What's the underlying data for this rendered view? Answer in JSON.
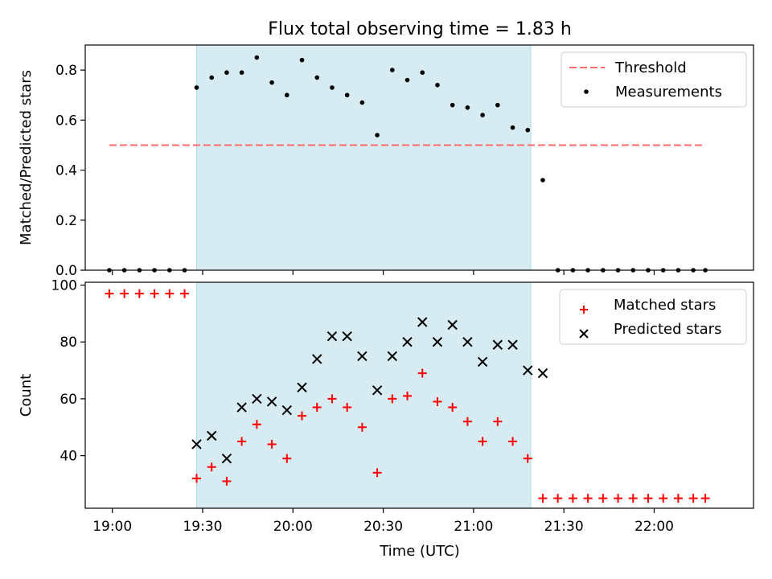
{
  "figure": {
    "title": "Flux total observing time = 1.83 h",
    "xlabel": "Time (UTC)",
    "background": "#ffffff"
  },
  "chart_data": [
    {
      "type": "scatter",
      "ylabel": "Matched/Predicted stars",
      "xlim": [
        "18:51",
        "22:33"
      ],
      "ylim": [
        0,
        0.9
      ],
      "yticks": [
        0.0,
        0.2,
        0.4,
        0.6,
        0.8
      ],
      "ytick_labels": [
        "0.0",
        "0.2",
        "0.4",
        "0.6",
        "0.8"
      ],
      "xticks": [
        "19:00",
        "19:30",
        "20:00",
        "20:30",
        "21:00",
        "21:30",
        "22:00"
      ],
      "xtick_labels_visible": false,
      "shaded_span": {
        "x": [
          "19:28",
          "21:19"
        ],
        "color": "#add8e6"
      },
      "legend": {
        "position": "top-right",
        "entries": [
          "Threshold",
          "Measurements"
        ]
      },
      "threshold": {
        "name": "Threshold",
        "y": 0.5,
        "x": [
          "18:59",
          "22:17"
        ],
        "color": "#ff6b6b",
        "style": "dashed"
      },
      "series": [
        {
          "name": "Measurements",
          "marker": "dot",
          "color": "#000000",
          "x": [
            "18:59",
            "19:04",
            "19:09",
            "19:14",
            "19:19",
            "19:24",
            "19:28",
            "19:33",
            "19:38",
            "19:43",
            "19:48",
            "19:53",
            "19:58",
            "20:03",
            "20:08",
            "20:13",
            "20:18",
            "20:23",
            "20:28",
            "20:33",
            "20:38",
            "20:43",
            "20:48",
            "20:53",
            "20:58",
            "21:03",
            "21:08",
            "21:13",
            "21:18",
            "21:23",
            "21:28",
            "21:33",
            "21:38",
            "21:43",
            "21:48",
            "21:53",
            "21:58",
            "22:03",
            "22:08",
            "22:13",
            "22:17"
          ],
          "y": [
            0,
            0,
            0,
            0,
            0,
            0,
            0.73,
            0.77,
            0.79,
            0.79,
            0.85,
            0.75,
            0.7,
            0.84,
            0.77,
            0.73,
            0.7,
            0.67,
            0.54,
            0.8,
            0.76,
            0.79,
            0.74,
            0.66,
            0.65,
            0.62,
            0.66,
            0.57,
            0.56,
            0.36,
            0,
            0,
            0,
            0,
            0,
            0,
            0,
            0,
            0,
            0,
            0
          ]
        }
      ]
    },
    {
      "type": "scatter",
      "ylabel": "Count",
      "xlim": [
        "18:51",
        "22:33"
      ],
      "ylim": [
        21.5,
        101
      ],
      "yticks": [
        40,
        60,
        80,
        100
      ],
      "ytick_labels": [
        "40",
        "60",
        "80",
        "100"
      ],
      "xticks": [
        "19:00",
        "19:30",
        "20:00",
        "20:30",
        "21:00",
        "21:30",
        "22:00"
      ],
      "xtick_labels": [
        "19:00",
        "19:30",
        "20:00",
        "20:30",
        "21:00",
        "21:30",
        "22:00"
      ],
      "shaded_span": {
        "x": [
          "19:28",
          "21:19"
        ],
        "color": "#add8e6"
      },
      "legend": {
        "position": "top-right",
        "entries": [
          "Matched stars",
          "Predicted stars"
        ]
      },
      "series": [
        {
          "name": "Matched stars",
          "marker": "plus",
          "color": "#ff0000",
          "x": [
            "18:59",
            "19:04",
            "19:09",
            "19:14",
            "19:19",
            "19:24",
            "19:28",
            "19:33",
            "19:38",
            "19:43",
            "19:48",
            "19:53",
            "19:58",
            "20:03",
            "20:08",
            "20:13",
            "20:18",
            "20:23",
            "20:28",
            "20:33",
            "20:38",
            "20:43",
            "20:48",
            "20:53",
            "20:58",
            "21:03",
            "21:08",
            "21:13",
            "21:18",
            "21:23",
            "21:28",
            "21:33",
            "21:38",
            "21:43",
            "21:48",
            "21:53",
            "21:58",
            "22:03",
            "22:08",
            "22:13",
            "22:17"
          ],
          "y": [
            97,
            97,
            97,
            97,
            97,
            97,
            32,
            36,
            31,
            45,
            51,
            44,
            39,
            54,
            57,
            60,
            57,
            50,
            34,
            60,
            61,
            69,
            59,
            57,
            52,
            45,
            52,
            45,
            39,
            25,
            25,
            25,
            25,
            25,
            25,
            25,
            25,
            25,
            25,
            25,
            25
          ]
        },
        {
          "name": "Predicted stars",
          "marker": "x",
          "color": "#000000",
          "x": [
            "19:28",
            "19:33",
            "19:38",
            "19:43",
            "19:48",
            "19:53",
            "19:58",
            "20:03",
            "20:08",
            "20:13",
            "20:18",
            "20:23",
            "20:28",
            "20:33",
            "20:38",
            "20:43",
            "20:48",
            "20:53",
            "20:58",
            "21:03",
            "21:08",
            "21:13",
            "21:18",
            "21:23"
          ],
          "y": [
            44,
            47,
            39,
            57,
            60,
            59,
            56,
            64,
            74,
            82,
            82,
            75,
            63,
            75,
            80,
            87,
            80,
            86,
            80,
            73,
            79,
            79,
            70,
            69
          ]
        }
      ]
    }
  ]
}
